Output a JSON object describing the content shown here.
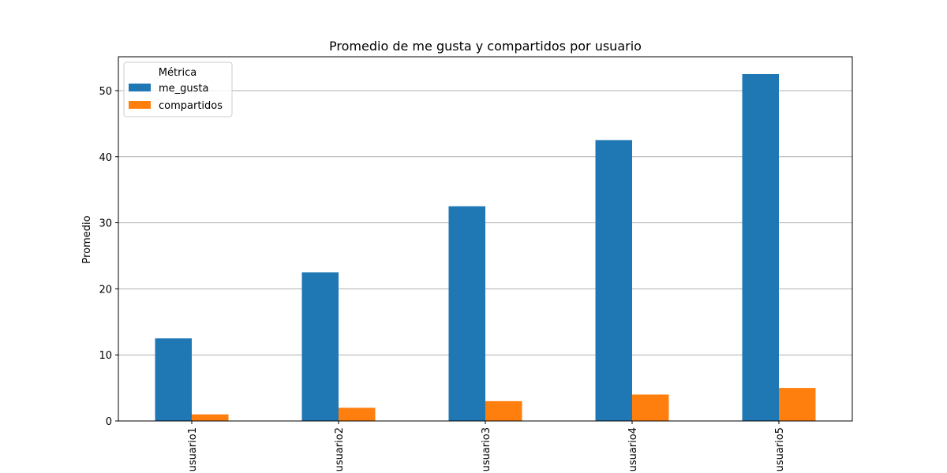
{
  "chart_data": {
    "type": "bar",
    "title": "Promedio de me gusta y compartidos por usuario",
    "xlabel": "",
    "ylabel": "Promedio",
    "categories": [
      "usuario1",
      "usuario2",
      "usuario3",
      "usuario4",
      "usuario5"
    ],
    "series": [
      {
        "name": "me_gusta",
        "values": [
          12.5,
          22.5,
          32.5,
          42.5,
          52.5
        ],
        "color": "#1f77b4"
      },
      {
        "name": "compartidos",
        "values": [
          1.0,
          2.0,
          3.0,
          4.0,
          5.0
        ],
        "color": "#ff7f0e"
      }
    ],
    "ylim": [
      0,
      55.125
    ],
    "yticks": [
      0,
      10,
      20,
      30,
      40,
      50
    ],
    "grid": "y",
    "legend": {
      "title": "Métrica",
      "placement": "upper-left"
    }
  }
}
